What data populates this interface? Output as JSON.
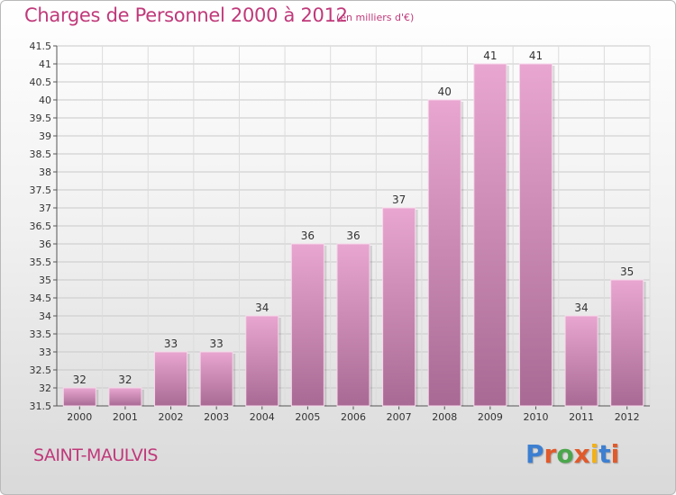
{
  "header": {
    "title": "Charges de Personnel 2000 à 2012",
    "subtitle": "(en milliers d'€)"
  },
  "footer": {
    "city": "SAINT-MAULVIS",
    "logo_text": "Proxiti"
  },
  "colors": {
    "title": "#c0397a",
    "bar_top": "#e8a6d0",
    "bar_bottom": "#a86a94",
    "logo_letters": [
      "#3d7fd1",
      "#e05a2b",
      "#4ca64c",
      "#e05a2b",
      "#f2b11b",
      "#3d7fd1",
      "#e05a2b"
    ]
  },
  "chart_data": {
    "type": "bar",
    "title": "Charges de Personnel 2000 à 2012",
    "subtitle": "(en milliers d'€)",
    "categories": [
      "2000",
      "2001",
      "2002",
      "2003",
      "2004",
      "2005",
      "2006",
      "2007",
      "2008",
      "2009",
      "2010",
      "2011",
      "2012"
    ],
    "values": [
      32,
      32,
      33,
      33,
      34,
      36,
      36,
      37,
      40,
      41,
      41,
      34,
      35
    ],
    "ylim": [
      31.5,
      41.5
    ],
    "yticks": [
      31.5,
      32,
      32.5,
      33,
      33.5,
      34,
      34.5,
      35,
      35.5,
      36,
      36.5,
      37,
      37.5,
      38,
      38.5,
      39,
      39.5,
      40,
      40.5,
      41,
      41.5
    ],
    "grid": true,
    "legend": "none"
  }
}
